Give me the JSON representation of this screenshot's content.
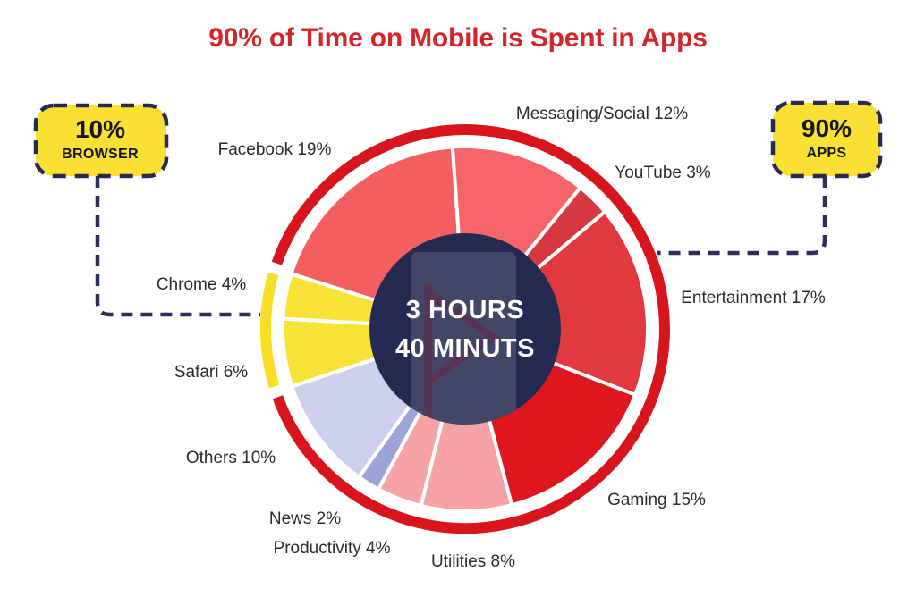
{
  "chart_data": {
    "type": "pie",
    "title": "90% of Time on Mobile is Spent in Apps",
    "center_annotation": [
      "3 HOURS",
      "40 MINUTS"
    ],
    "group_annotations": [
      {
        "value": "10%",
        "label": "BROWSER",
        "side": "left"
      },
      {
        "value": "90%",
        "label": "APPS",
        "side": "right"
      }
    ],
    "slices": [
      {
        "label": "Messaging/Social",
        "value": 12,
        "display": "Messaging/Social 12%",
        "color": "#f56468"
      },
      {
        "label": "YouTube",
        "value": 3,
        "display": "YouTube 3%",
        "color": "#d63940"
      },
      {
        "label": "Entertainment",
        "value": 17,
        "display": "Entertainment 17%",
        "color": "#e03a3f"
      },
      {
        "label": "Gaming",
        "value": 15,
        "display": "Gaming 15%",
        "color": "#de161e"
      },
      {
        "label": "Utilities",
        "value": 8,
        "display": "Utilities 8%",
        "color": "#f7a2a6"
      },
      {
        "label": "Productivity",
        "value": 4,
        "display": "Productivity 4%",
        "color": "#f7a2a6"
      },
      {
        "label": "News",
        "value": 2,
        "display": "News 2%",
        "color": "#9ca3d8"
      },
      {
        "label": "Others",
        "value": 10,
        "display": "Others 10%",
        "color": "#cdd0ec"
      },
      {
        "label": "Safari",
        "value": 6,
        "display": "Safari 6%",
        "color": "#f9e237"
      },
      {
        "label": "Chrome",
        "value": 4,
        "display": "Chrome 4%",
        "color": "#f9e237"
      },
      {
        "label": "Facebook",
        "value": 19,
        "display": "Facebook 19%",
        "color": "#f45f62"
      }
    ],
    "rotation_deg": -4,
    "ring": {
      "apps_color": "#d8141c",
      "browser_color": "#f8df25",
      "browser_slices": [
        "Safari",
        "Chrome"
      ]
    },
    "colors": {
      "title": "#d2262c",
      "center_circle": "#252a52",
      "badge_fill": "#f9e033",
      "badge_border": "#272b52",
      "connector": "#2b3057"
    },
    "legend": "none",
    "grid": false
  }
}
